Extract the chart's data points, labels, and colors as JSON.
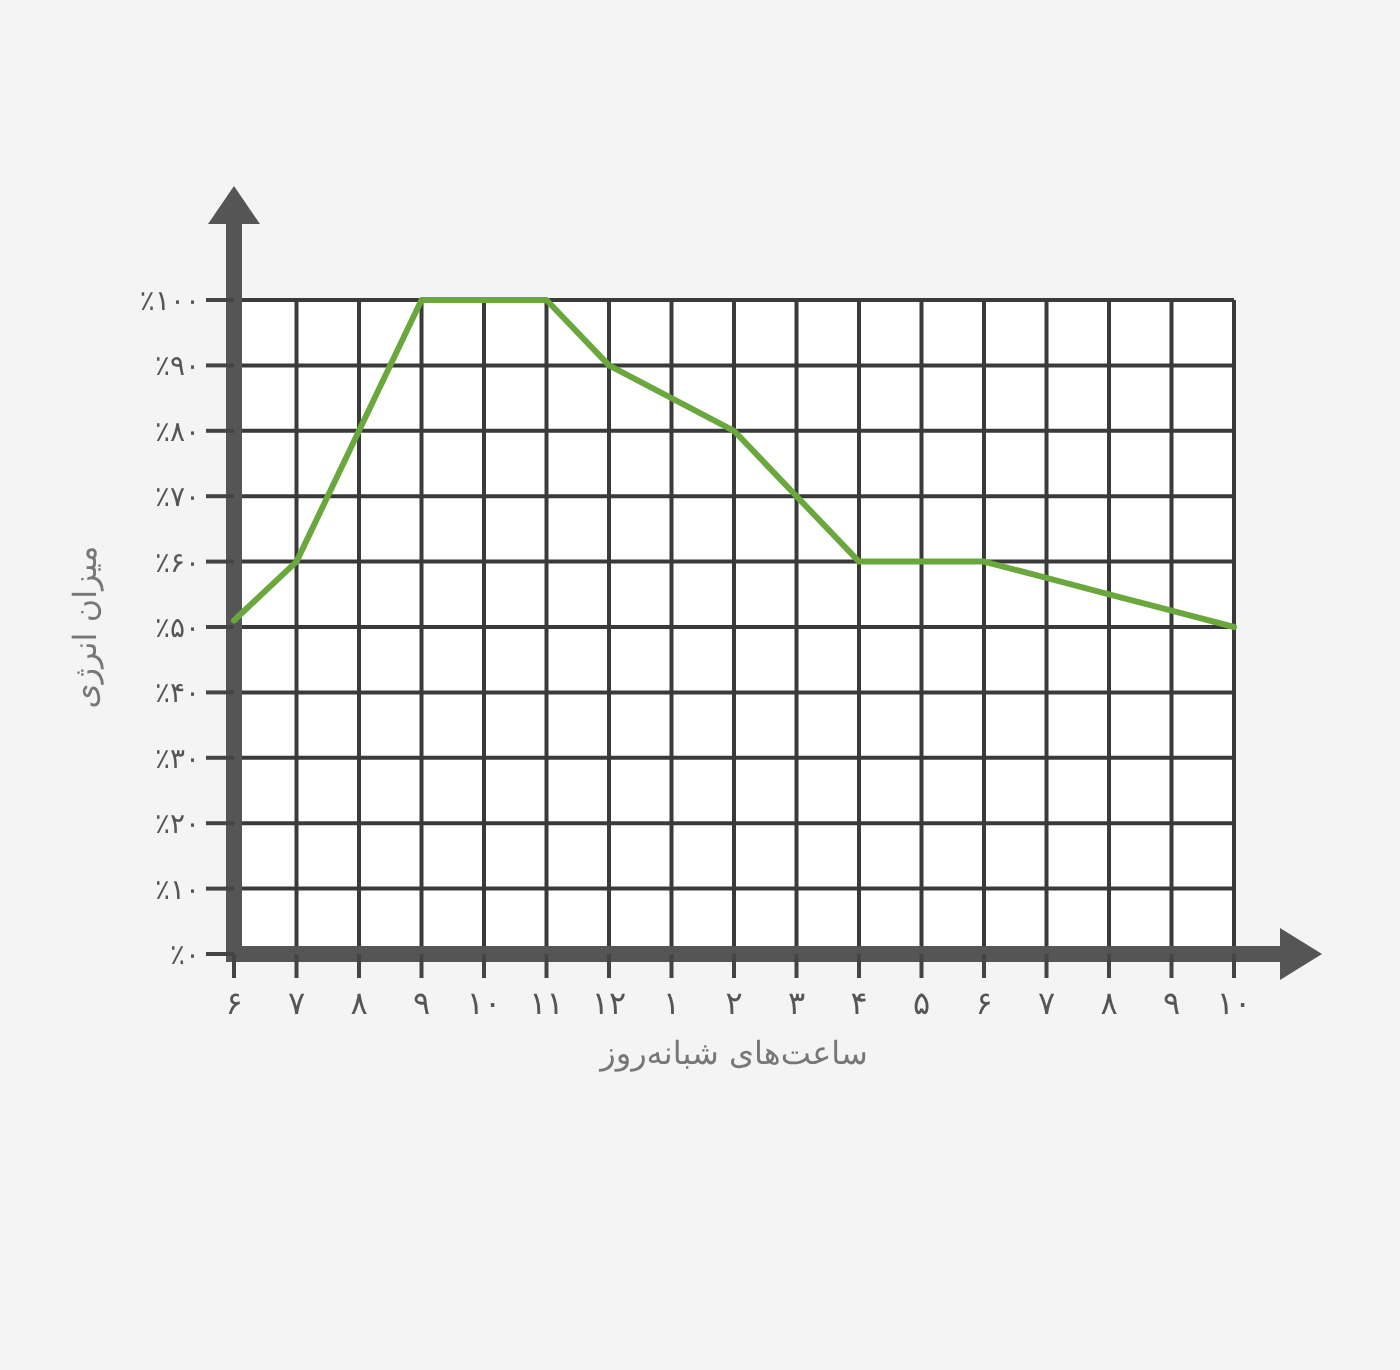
{
  "chart_data": {
    "type": "line",
    "xlabel": "ساعت‌های شبانه‌روز",
    "ylabel": "میزان انرژی",
    "categories": [
      "۶",
      "۷",
      "۸",
      "۹",
      "۱۰",
      "۱۱",
      "۱۲",
      "۱",
      "۲",
      "۳",
      "۴",
      "۵",
      "۶",
      "۷",
      "۸",
      "۹",
      "۱۰"
    ],
    "series": [
      {
        "color": "#6aa83e",
        "values": [
          51,
          60,
          80,
          100,
          100,
          100,
          90,
          85,
          80,
          70,
          60,
          60,
          60,
          57.5,
          55,
          52.5,
          50
        ]
      }
    ],
    "ylim": [
      0,
      100
    ],
    "yticks": [
      {
        "value": 0,
        "label": "٪۰"
      },
      {
        "value": 10,
        "label": "٪۱۰"
      },
      {
        "value": 20,
        "label": "٪۲۰"
      },
      {
        "value": 30,
        "label": "٪۳۰"
      },
      {
        "value": 40,
        "label": "٪۴۰"
      },
      {
        "value": 50,
        "label": "٪۵۰"
      },
      {
        "value": 60,
        "label": "٪۶۰"
      },
      {
        "value": 70,
        "label": "٪۷۰"
      },
      {
        "value": 80,
        "label": "٪۸۰"
      },
      {
        "value": 90,
        "label": "٪۹۰"
      },
      {
        "value": 100,
        "label": "٪۱۰۰"
      }
    ],
    "grid": true
  }
}
